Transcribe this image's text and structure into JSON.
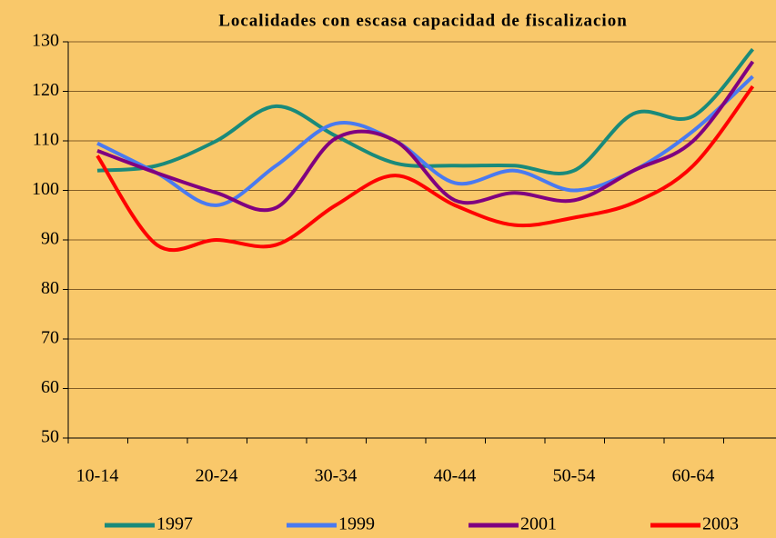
{
  "chart_data": {
    "type": "line",
    "title": "Localidades con escasa capacidad de fiscalizacion",
    "categories": [
      "10-14",
      null,
      "20-24",
      null,
      "30-34",
      null,
      "40-44",
      null,
      "50-54",
      null,
      "60-64",
      null
    ],
    "series": [
      {
        "name": "1997",
        "color": "#1a8a7a",
        "values": [
          104,
          105,
          110,
          117,
          111,
          105.5,
          105,
          105,
          104,
          115.5,
          115,
          128.5
        ]
      },
      {
        "name": "1999",
        "color": "#4a7af0",
        "values": [
          109.5,
          103.5,
          97,
          105,
          113.5,
          110,
          101.5,
          104,
          100,
          104,
          112,
          123
        ]
      },
      {
        "name": "2001",
        "color": "#800080",
        "values": [
          108,
          103.5,
          99.5,
          96.5,
          110.5,
          110,
          98,
          99.5,
          98,
          104,
          110,
          126
        ]
      },
      {
        "name": "2003",
        "color": "#ff0000",
        "values": [
          107,
          89,
          90,
          89,
          97,
          103,
          97,
          93,
          94.5,
          97.5,
          105,
          121
        ]
      }
    ],
    "ylim": [
      50,
      130
    ],
    "yticks": [
      50,
      60,
      70,
      80,
      90,
      100,
      110,
      120,
      130
    ],
    "grid": true
  }
}
